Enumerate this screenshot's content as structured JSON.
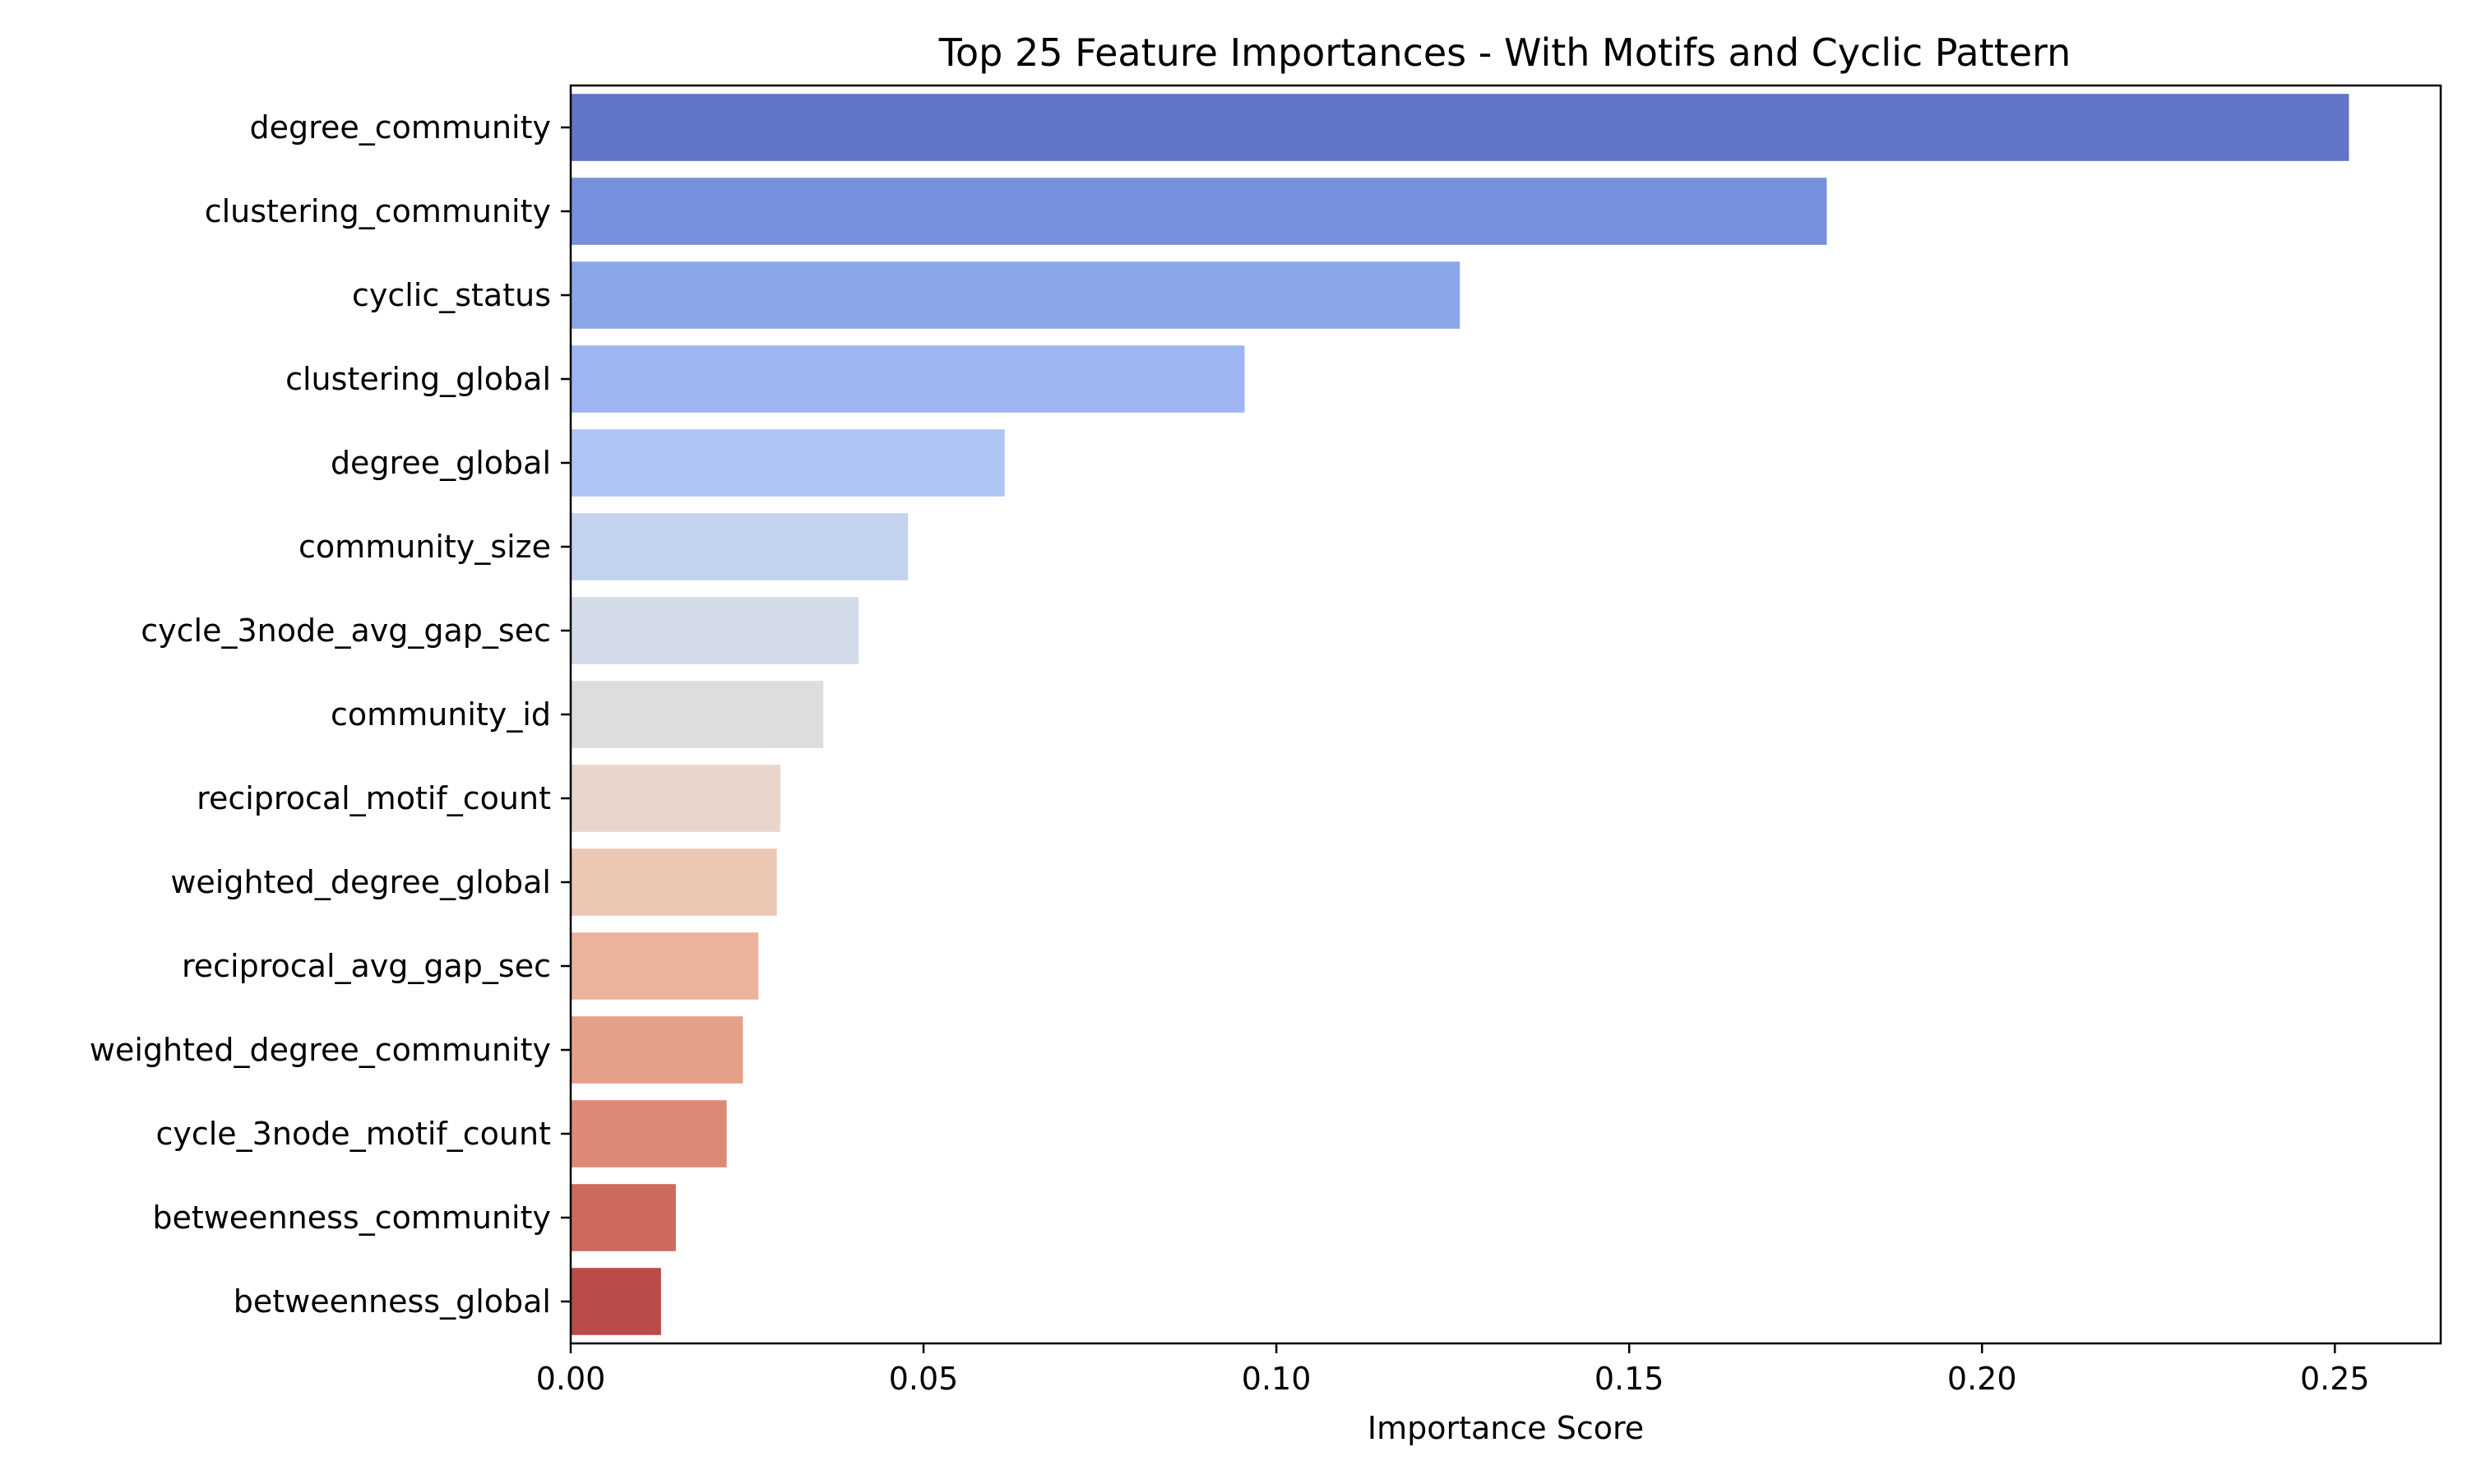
{
  "chart_data": {
    "type": "bar",
    "orientation": "horizontal",
    "title": "Top 25 Feature Importances - With Motifs and Cyclic Pattern",
    "xlabel": "Importance Score",
    "ylabel": "",
    "xlim": [
      0,
      0.265
    ],
    "xticks": [
      0.0,
      0.05,
      0.1,
      0.15,
      0.2,
      0.25
    ],
    "xtick_labels": [
      "0.00",
      "0.05",
      "0.10",
      "0.15",
      "0.20",
      "0.25"
    ],
    "grid": false,
    "categories": [
      "degree_community",
      "clustering_community",
      "cyclic_status",
      "clustering_global",
      "degree_global",
      "community_size",
      "cycle_3node_avg_gap_sec",
      "community_id",
      "reciprocal_motif_count",
      "weighted_degree_global",
      "reciprocal_avg_gap_sec",
      "weighted_degree_community",
      "cycle_3node_motif_count",
      "betweenness_community",
      "betweenness_global"
    ],
    "values": [
      0.252,
      0.178,
      0.126,
      0.0955,
      0.0615,
      0.0478,
      0.0408,
      0.0358,
      0.0297,
      0.0292,
      0.0266,
      0.0244,
      0.0221,
      0.0149,
      0.0128
    ],
    "colors": [
      "#6174c8",
      "#7690dc",
      "#8aa6e9",
      "#9db6f1",
      "#afc5f3",
      "#c2d2ef",
      "#d3dbe8",
      "#dddddd",
      "#e8d5cc",
      "#ecc7b4",
      "#ecb39c",
      "#e6a088",
      "#dc8a76",
      "#cc6a5d",
      "#b94b49"
    ]
  }
}
